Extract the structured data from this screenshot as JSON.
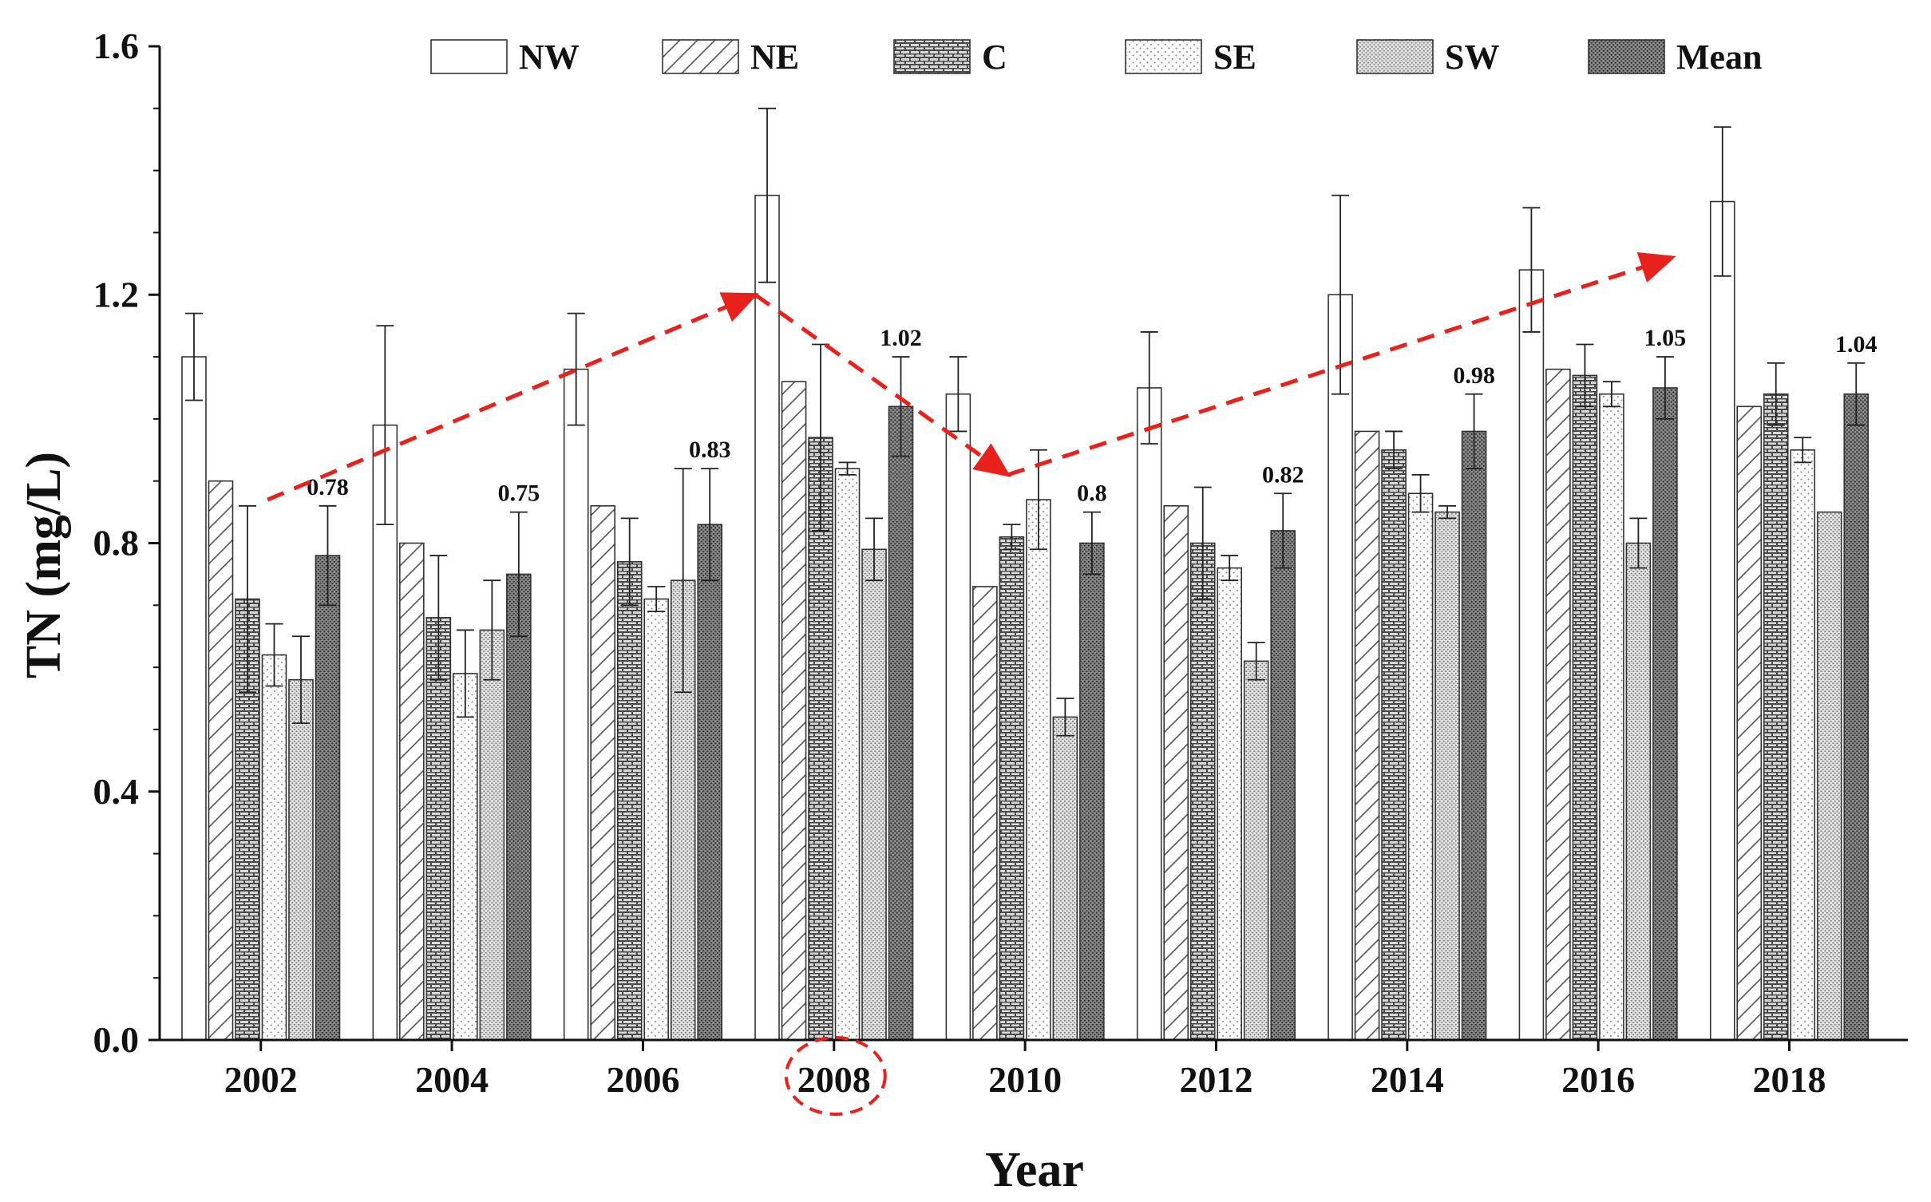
{
  "chart_data": {
    "type": "bar",
    "title": "",
    "xlabel": "Year",
    "ylabel": "TN (mg/L)",
    "ylim": [
      0,
      1.6
    ],
    "yticks": [
      "0.0",
      "0.4",
      "0.8",
      "1.2",
      "1.6"
    ],
    "categories": [
      "2002",
      "2004",
      "2006",
      "2008",
      "2010",
      "2012",
      "2014",
      "2016",
      "2018"
    ],
    "series": [
      {
        "name": "NW",
        "pattern": "blank",
        "values": [
          1.1,
          0.99,
          1.08,
          1.36,
          1.04,
          1.05,
          1.2,
          1.24,
          1.35
        ],
        "errors": [
          0.07,
          0.16,
          0.09,
          0.14,
          0.06,
          0.09,
          0.16,
          0.1,
          0.12
        ]
      },
      {
        "name": "NE",
        "pattern": "diagonal",
        "values": [
          0.9,
          0.8,
          0.86,
          1.06,
          0.73,
          0.86,
          0.98,
          1.08,
          1.02
        ],
        "errors": [
          0,
          0,
          0,
          0,
          0,
          0,
          0,
          0,
          0
        ]
      },
      {
        "name": "C",
        "pattern": "brick",
        "values": [
          0.71,
          0.68,
          0.77,
          0.97,
          0.81,
          0.8,
          0.95,
          1.07,
          1.04
        ],
        "errors": [
          0.15,
          0.1,
          0.07,
          0.15,
          0.02,
          0.09,
          0.03,
          0.05,
          0.05
        ]
      },
      {
        "name": "SE",
        "pattern": "sparse-dots",
        "values": [
          0.62,
          0.59,
          0.71,
          0.92,
          0.87,
          0.76,
          0.88,
          1.04,
          0.95
        ],
        "errors": [
          0.05,
          0.07,
          0.02,
          0.01,
          0.08,
          0.02,
          0.03,
          0.02,
          0.02
        ]
      },
      {
        "name": "SW",
        "pattern": "dense-dots",
        "values": [
          0.58,
          0.66,
          0.74,
          0.79,
          0.52,
          0.61,
          0.85,
          0.8,
          0.85
        ],
        "errors": [
          0.07,
          0.08,
          0.18,
          0.05,
          0.03,
          0.03,
          0.01,
          0.04,
          0
        ]
      },
      {
        "name": "Mean",
        "pattern": "dark-dots",
        "values": [
          0.78,
          0.75,
          0.83,
          1.02,
          0.8,
          0.82,
          0.98,
          1.05,
          1.04
        ],
        "errors": [
          0.08,
          0.1,
          0.09,
          0.08,
          0.05,
          0.06,
          0.06,
          0.05,
          0.05
        ]
      }
    ],
    "data_labels": [
      "0.78",
      "0.75",
      "0.83",
      "1.02",
      "0.8",
      "0.82",
      "0.98",
      "1.05",
      "1.04"
    ],
    "legend": {
      "position": "top-center",
      "entries": [
        "NW",
        "NE",
        "C",
        "SE",
        "SW",
        "Mean"
      ]
    },
    "annotations": {
      "trend_arrows": [
        {
          "from_x": "2002",
          "from_y": 0.87,
          "to_x": "2008",
          "to_y": 1.2
        },
        {
          "from_x": "2008",
          "from_y": 1.2,
          "to_x": "2010",
          "to_y": 0.91
        },
        {
          "from_x": "2010",
          "from_y": 0.91,
          "to_x": "2018",
          "to_y": 1.26
        }
      ],
      "highlighted_category": "2008"
    },
    "colors": {
      "arrow": "#e8211d",
      "axis": "#111111",
      "bar_outline": "#333333"
    }
  }
}
